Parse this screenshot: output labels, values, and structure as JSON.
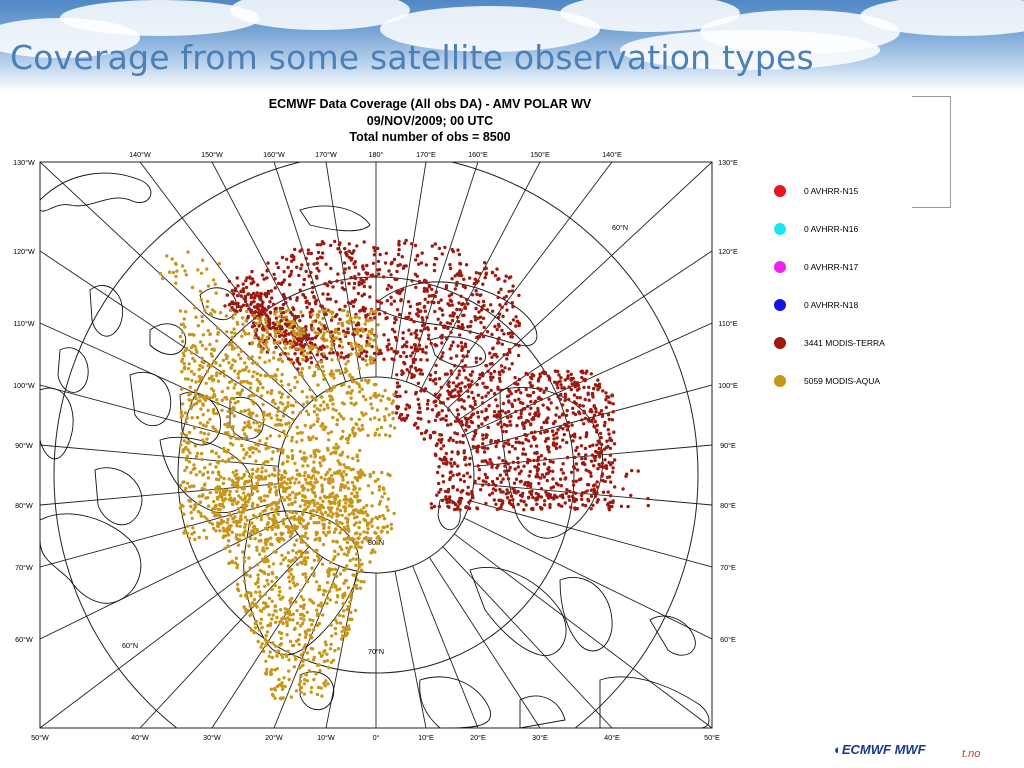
{
  "slide": {
    "title": "Coverage from some satellite observation types",
    "logo_text": "◐ECMWF  MWF",
    "footer_fragment": "t.no"
  },
  "chart_header": {
    "line1": "ECMWF Data Coverage (All obs DA) - AMV POLAR WV",
    "line2": "09/NOV/2009; 00 UTC",
    "line3": "Total number of obs  = 8500"
  },
  "map": {
    "projection": "north-polar-stereographic",
    "latitude_circles": [
      "80°N",
      "70°N",
      "60°N"
    ],
    "top_labels": [
      "140°W",
      "150°W",
      "160°W",
      "170°W",
      "180°",
      "170°E",
      "160°E",
      "150°E",
      "140°E"
    ],
    "bottom_labels": [
      "50°W",
      "40°W",
      "30°W",
      "20°W",
      "10°W",
      "0°",
      "10°E",
      "20°E",
      "30°E",
      "40°E",
      "50°E"
    ],
    "left_labels": [
      "130°W",
      "120°W",
      "110°W",
      "100°W",
      "90°W",
      "80°W",
      "70°W",
      "60°W"
    ],
    "right_labels": [
      "130°E",
      "120°E",
      "110°E",
      "100°E",
      "90°E",
      "80°E",
      "70°E",
      "60°E"
    ]
  },
  "legend": {
    "items": [
      {
        "label": "0 AVHRR-N15",
        "color": "#e8141e"
      },
      {
        "label": "0 AVHRR-N16",
        "color": "#19e6f0"
      },
      {
        "label": "0 AVHRR-N17",
        "color": "#ee22ee"
      },
      {
        "label": "0 AVHRR-N18",
        "color": "#1414e6"
      },
      {
        "label": "3441 MODIS-TERRA",
        "color": "#9e1a10"
      },
      {
        "label": "5059 MODIS-AQUA",
        "color": "#c89619"
      }
    ]
  },
  "colors": {
    "terra": "#9e1a10",
    "aqua": "#c89619",
    "title": "#4a7fb8",
    "coastline": "#111111",
    "grid": "#222222"
  }
}
